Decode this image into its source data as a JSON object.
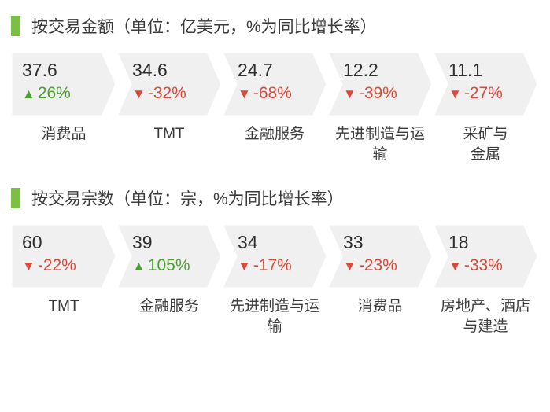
{
  "colors": {
    "accent_bar": "#7bbf43",
    "chevron_fill": "#f0f0f0",
    "chevron_gap": "#ffffff",
    "up": "#4aa02c",
    "down": "#d94a3a",
    "text_dark": "#3a3a3a"
  },
  "sections": [
    {
      "title": "按交易金额（单位：亿美元，%为同比增长率）",
      "items": [
        {
          "value": "37.6",
          "change": "26%",
          "dir": "up",
          "label": "消费品"
        },
        {
          "value": "34.6",
          "change": "-32%",
          "dir": "down",
          "label": "TMT"
        },
        {
          "value": "24.7",
          "change": "-68%",
          "dir": "down",
          "label": "金融服务"
        },
        {
          "value": "12.2",
          "change": "-39%",
          "dir": "down",
          "label": "先进制造与运输"
        },
        {
          "value": "11.1",
          "change": "-27%",
          "dir": "down",
          "label": "采矿与\n金属"
        }
      ]
    },
    {
      "title": "按交易宗数（单位：宗，%为同比增长率）",
      "items": [
        {
          "value": "60",
          "change": "-22%",
          "dir": "down",
          "label": "TMT"
        },
        {
          "value": "39",
          "change": "105%",
          "dir": "up",
          "label": "金融服务"
        },
        {
          "value": "34",
          "change": "-17%",
          "dir": "down",
          "label": "先进制造与运输"
        },
        {
          "value": "33",
          "change": "-23%",
          "dir": "down",
          "label": "消费品"
        },
        {
          "value": "18",
          "change": "-33%",
          "dir": "down",
          "label": "房地产、酒店与建造"
        }
      ]
    }
  ],
  "layout": {
    "item_width": 134,
    "item_height": 82,
    "arrow_notch": 18
  }
}
